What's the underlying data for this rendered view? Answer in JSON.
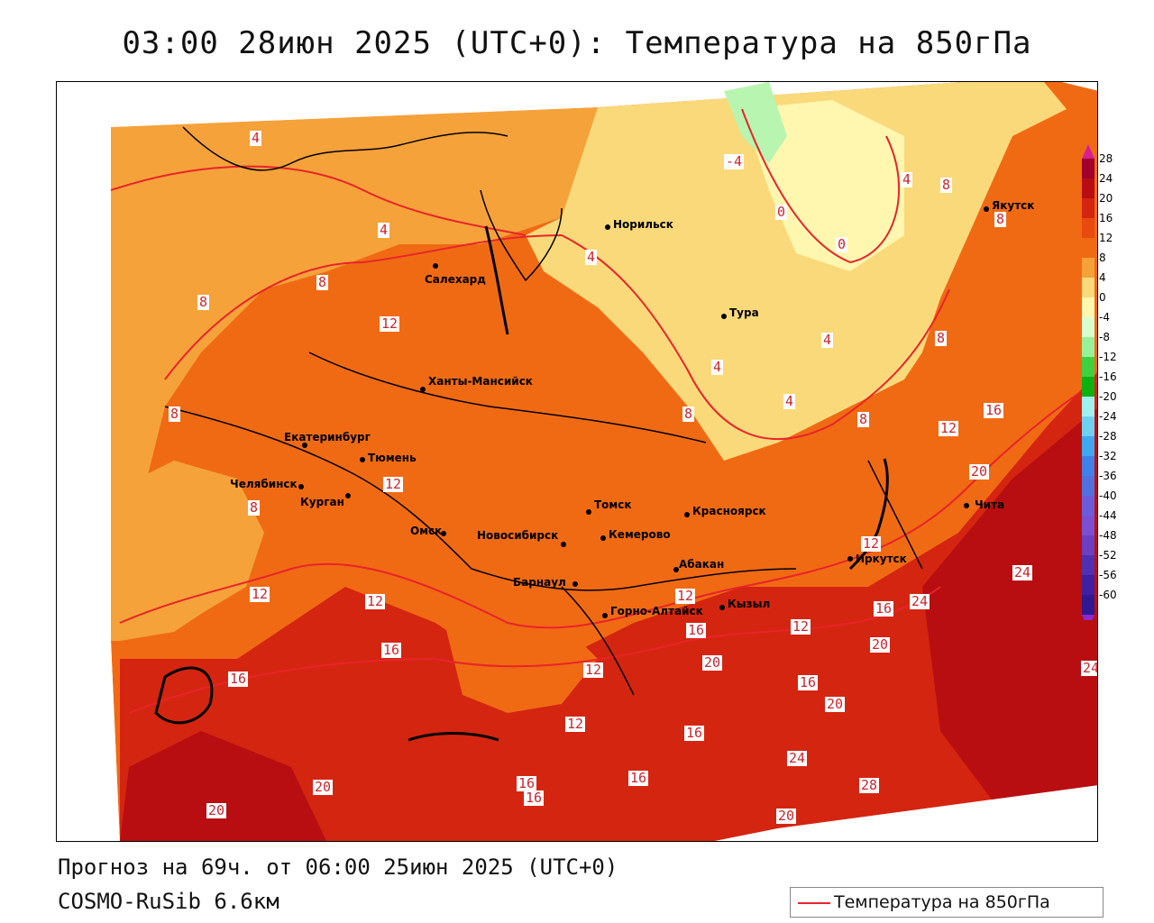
{
  "title": "03:00 28июн 2025 (UTC+0): Температура на 850гПа",
  "footer": {
    "forecast": "Прогноз на 69ч. от 06:00 25июн 2025 (UTC+0)",
    "model": "COSMO-RuSib 6.6км"
  },
  "legend": {
    "label": "Температура на 850гПа",
    "line_color": "#e8242a"
  },
  "colorbar": {
    "labels": [
      "28",
      "24",
      "20",
      "16",
      "12",
      "8",
      "4",
      "0",
      "-4",
      "-8",
      "-12",
      "-16",
      "-20",
      "-24",
      "-28",
      "-32",
      "-36",
      "-40",
      "-44",
      "-48",
      "-52",
      "-56",
      "-60"
    ],
    "colors": [
      "#a0002a",
      "#b80e12",
      "#d42510",
      "#e84a10",
      "#f06a14",
      "#f5a23a",
      "#fad97a",
      "#fff7b0",
      "#d8ffd0",
      "#98f098",
      "#40d040",
      "#10b010",
      "#a0f0f0",
      "#70d0f0",
      "#40a8f0",
      "#4080e8",
      "#5070e0",
      "#6a5cd8",
      "#7a50d0",
      "#6a40c0",
      "#5030b0",
      "#4020a0",
      "#301890"
    ],
    "top_color": "#d62090",
    "bottom_color": "#8a2ad0"
  },
  "cities": [
    {
      "name": "Норильск"
    },
    {
      "name": "Якутск"
    },
    {
      "name": "Салехард"
    },
    {
      "name": "Тура"
    },
    {
      "name": "Ханты-Мансийск"
    },
    {
      "name": "Екатеринбург"
    },
    {
      "name": "Тюмень"
    },
    {
      "name": "Челябинск"
    },
    {
      "name": "Курган"
    },
    {
      "name": "Омск"
    },
    {
      "name": "Новосибирск"
    },
    {
      "name": "Томск"
    },
    {
      "name": "Кемерово"
    },
    {
      "name": "Красноярск"
    },
    {
      "name": "Барнаул"
    },
    {
      "name": "Абакан"
    },
    {
      "name": "Горно-Алтайск"
    },
    {
      "name": "Кызыл"
    },
    {
      "name": "Иркутск"
    },
    {
      "name": "Чита"
    }
  ],
  "isotherm_labels": [
    {
      "value": "4"
    },
    {
      "value": "-4"
    },
    {
      "value": "4"
    },
    {
      "value": "8"
    },
    {
      "value": "8"
    },
    {
      "value": "0"
    },
    {
      "value": "0"
    },
    {
      "value": "4"
    },
    {
      "value": "4"
    },
    {
      "value": "8"
    },
    {
      "value": "8"
    },
    {
      "value": "12"
    },
    {
      "value": "4"
    },
    {
      "value": "4"
    },
    {
      "value": "4"
    },
    {
      "value": "8"
    },
    {
      "value": "8"
    },
    {
      "value": "8"
    },
    {
      "value": "12"
    },
    {
      "value": "16"
    },
    {
      "value": "8"
    },
    {
      "value": "12"
    },
    {
      "value": "8"
    },
    {
      "value": "12"
    },
    {
      "value": "12"
    },
    {
      "value": "20"
    },
    {
      "value": "12"
    },
    {
      "value": "24"
    },
    {
      "value": "16"
    },
    {
      "value": "24"
    },
    {
      "value": "16"
    },
    {
      "value": "12"
    },
    {
      "value": "16"
    },
    {
      "value": "12"
    },
    {
      "value": "16"
    },
    {
      "value": "20"
    },
    {
      "value": "20"
    },
    {
      "value": "16"
    },
    {
      "value": "20"
    },
    {
      "value": "12"
    },
    {
      "value": "12"
    },
    {
      "value": "16"
    },
    {
      "value": "24"
    },
    {
      "value": "28"
    },
    {
      "value": "20"
    },
    {
      "value": "20"
    },
    {
      "value": "16"
    },
    {
      "value": "16"
    },
    {
      "value": "16"
    },
    {
      "value": "20"
    },
    {
      "value": "24"
    }
  ]
}
